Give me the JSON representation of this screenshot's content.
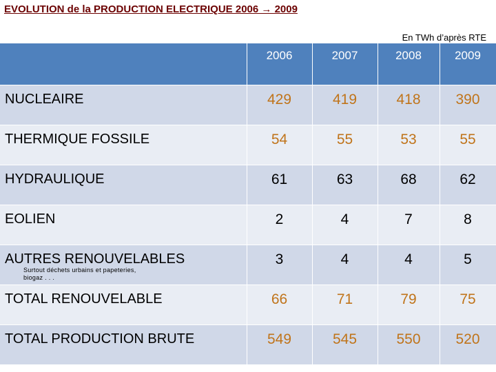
{
  "header": {
    "title": "EVOLUTION de la PRODUCTION ELECTRIQUE 2006 → 2009",
    "subtitle": "En TWh d’après RTE"
  },
  "table": {
    "columns": [
      2006,
      2007,
      2008,
      2009
    ],
    "rows": [
      {
        "label": "NUCLEAIRE",
        "values": [
          429,
          419,
          418,
          390
        ]
      },
      {
        "label": "THERMIQUE FOSSILE",
        "values": [
          54,
          55,
          53,
          55
        ]
      },
      {
        "label": "HYDRAULIQUE",
        "values": [
          61,
          63,
          68,
          62
        ]
      },
      {
        "label": "EOLIEN",
        "values": [
          2,
          4,
          7,
          8
        ]
      },
      {
        "label": "AUTRES RENOUVELABLES",
        "note": "Surtout déchets urbains et papeteries, biogaz . . .",
        "values": [
          3,
          4,
          4,
          5
        ]
      },
      {
        "label": "TOTAL RENOUVELABLE",
        "values": [
          66,
          71,
          79,
          75
        ]
      },
      {
        "label": "TOTAL  PRODUCTION BRUTE",
        "values": [
          549,
          545,
          550,
          520
        ]
      }
    ]
  }
}
